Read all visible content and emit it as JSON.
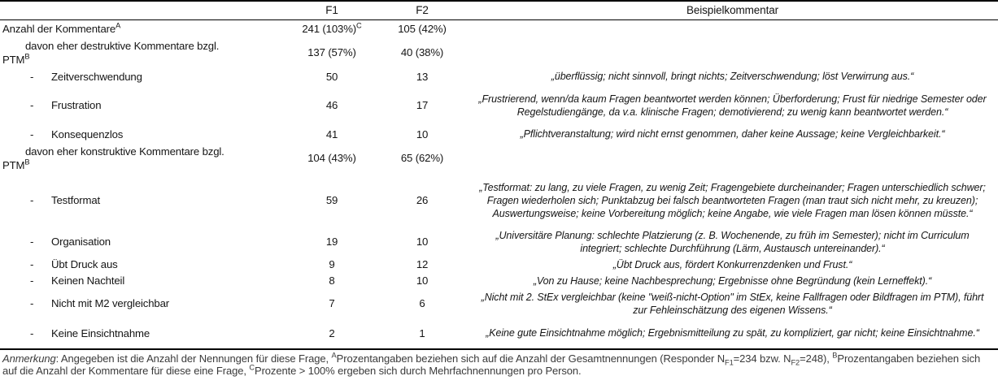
{
  "header": {
    "label": "",
    "f1": "F1",
    "f2": "F2",
    "comment": "Beispielkommentar"
  },
  "table": {
    "dash": "-",
    "rows": [
      {
        "label": "Anzahl der Kommentare",
        "label_sup": "A",
        "f1": "241 (103%)",
        "f1_sup": "C",
        "f2": "105 (42%)",
        "comment": ""
      },
      {
        "label_line1": "davon eher destruktive Kommentare bzgl.",
        "label_line2": "PTM",
        "label_sup": "B",
        "f1": "137 (57%)",
        "f2": "40 (38%)",
        "comment": ""
      },
      {
        "label": "Zeitverschwendung",
        "f1": "50",
        "f2": "13",
        "comment": "„überflüssig; nicht sinnvoll, bringt nichts; Zeitverschwendung; löst Verwirrung aus.“"
      },
      {
        "label": "Frustration",
        "f1": "46",
        "f2": "17",
        "comment": "„Frustrierend, wenn/da kaum Fragen beantwortet werden können; Überforderung; Frust für niedrige Semester oder Regelstudiengänge, da v.a. klinische Fragen; demotivierend; zu wenig kann beantwortet werden.“"
      },
      {
        "label": "Konsequenzlos",
        "f1": "41",
        "f2": "10",
        "comment": "„Pflichtveranstaltung; wird nicht ernst genommen, daher keine Aussage; keine Vergleichbarkeit.“"
      },
      {
        "label_line1": "davon eher konstruktive Kommentare bzgl.",
        "label_line2": "PTM",
        "label_sup": "B",
        "f1": "104 (43%)",
        "f2": "65 (62%)",
        "comment": ""
      },
      {
        "label": "Testformat",
        "f1": "59",
        "f2": "26",
        "comment": "„Testformat: zu lang, zu viele Fragen, zu wenig Zeit; Fragengebiete durcheinander; Fragen unterschiedlich schwer; Fragen wiederholen sich; Punktabzug bei falsch beantworteten Fragen (man traut sich nicht mehr, zu kreuzen); Auswertungsweise; keine Vorbereitung möglich; keine Angabe, wie viele Fragen man lösen können müsste.“"
      },
      {
        "label": "Organisation",
        "f1": "19",
        "f2": "10",
        "comment": "„Universitäre Planung: schlechte Platzierung (z. B. Wochenende, zu früh im Semester); nicht im Curriculum integriert; schlechte Durchführung (Lärm, Austausch untereinander).“"
      },
      {
        "label": "Übt Druck aus",
        "f1": "9",
        "f2": "12",
        "comment": "„Übt Druck aus, fördert Konkurrenzdenken und Frust.“"
      },
      {
        "label": "Keinen Nachteil",
        "f1": "8",
        "f2": "10",
        "comment": "„Von zu Hause; keine Nachbesprechung; Ergebnisse ohne Begründung (kein Lerneffekt).“"
      },
      {
        "label": "Nicht mit M2 vergleichbar",
        "f1": "7",
        "f2": "6",
        "comment": "„Nicht mit 2. StEx vergleichbar (keine \"weiß-nicht-Option\" im StEx, keine Fallfragen oder Bildfragen im PTM), führt zur Fehleinschätzung des eigenen Wissens.“"
      },
      {
        "label": "Keine Einsichtnahme",
        "f1": "2",
        "f2": "1",
        "comment": "„Keine gute Einsichtnahme möglich; Ergebnismitteilung zu spät, zu kompliziert, gar nicht; keine Einsichtnahme.“"
      }
    ]
  },
  "note": {
    "s0": "Anmerkung",
    "s1": ": Angegeben ist die Anzahl der Nennungen für diese Frage, ",
    "s2": "A",
    "s3": "Prozentangaben beziehen sich auf die Anzahl der Gesamtnennungen (Responder N",
    "s4": "F1",
    "s5": "=234 bzw. N",
    "s6": "F2",
    "s7": "=248), ",
    "s8": "B",
    "s9": "Prozentangaben beziehen sich auf die Anzahl der Kommentare für diese eine Frage, ",
    "s10": "C",
    "s11": "Prozente > 100% ergeben sich durch Mehrfachnennungen pro Person."
  }
}
